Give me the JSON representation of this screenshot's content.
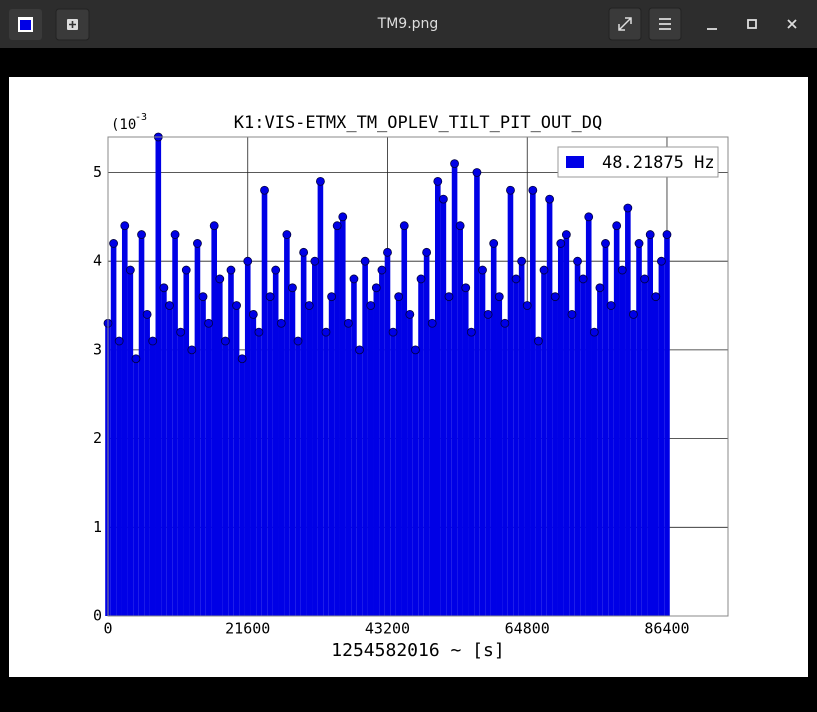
{
  "window": {
    "title": "TM9.png"
  },
  "chart_data": {
    "type": "stem",
    "title": "K1:VIS-ETMX_TM_OPLEV_TILT_PIT_OUT_DQ",
    "x_label": "1254582016 ~ [s]",
    "y_multiplier": "(10",
    "y_multiplier_exponent": "-3",
    "legend_position": "upper right",
    "grid": true,
    "xlim": [
      0,
      95832
    ],
    "ylim": [
      0,
      5.4
    ],
    "xticks": [
      0,
      21600,
      43200,
      64800,
      86400
    ],
    "yticks": [
      0,
      1,
      2,
      3,
      4,
      5
    ],
    "x": [
      0,
      864,
      1728,
      2592,
      3456,
      4320,
      5184,
      6048,
      6912,
      7776,
      8640,
      9504,
      10368,
      11232,
      12096,
      12960,
      13824,
      14688,
      15552,
      16416,
      17280,
      18144,
      19008,
      19872,
      20736,
      21600,
      22464,
      23328,
      24192,
      25056,
      25920,
      26784,
      27648,
      28512,
      29376,
      30240,
      31104,
      31968,
      32832,
      33696,
      34560,
      35424,
      36288,
      37152,
      38016,
      38880,
      39744,
      40608,
      41472,
      42336,
      43200,
      44064,
      44928,
      45792,
      46656,
      47520,
      48384,
      49248,
      50112,
      50976,
      51840,
      52704,
      53568,
      54432,
      55296,
      56160,
      57024,
      57888,
      58752,
      59616,
      60480,
      61344,
      62208,
      63072,
      63936,
      64800,
      65664,
      66528,
      67392,
      68256,
      69120,
      69984,
      70848,
      71712,
      72576,
      73440,
      74304,
      75168,
      76032,
      76896,
      77760,
      78624,
      79488,
      80352,
      81216,
      82080,
      82944,
      83808,
      84672,
      85536,
      86400
    ],
    "series": [
      {
        "name": "48.21875 Hz",
        "color": "#0000e6",
        "values": [
          3.3,
          4.2,
          3.1,
          4.4,
          3.9,
          2.9,
          4.3,
          3.4,
          3.1,
          5.4,
          3.7,
          3.5,
          4.3,
          3.2,
          3.9,
          3.0,
          4.2,
          3.6,
          3.3,
          4.4,
          3.8,
          3.1,
          3.9,
          3.5,
          2.9,
          4.0,
          3.4,
          3.2,
          4.8,
          3.6,
          3.9,
          3.3,
          4.3,
          3.7,
          3.1,
          4.1,
          3.5,
          4.0,
          4.9,
          3.2,
          3.6,
          4.4,
          4.5,
          3.3,
          3.8,
          3.0,
          4.0,
          3.5,
          3.7,
          3.9,
          4.1,
          3.2,
          3.6,
          4.4,
          3.4,
          3.0,
          3.8,
          4.1,
          3.3,
          4.9,
          4.7,
          3.6,
          5.1,
          4.4,
          3.7,
          3.2,
          5.0,
          3.9,
          3.4,
          4.2,
          3.6,
          3.3,
          4.8,
          3.8,
          4.0,
          3.5,
          4.8,
          3.1,
          3.9,
          4.7,
          3.6,
          4.2,
          4.3,
          3.4,
          4.0,
          3.8,
          4.5,
          3.2,
          3.7,
          4.2,
          3.5,
          4.4,
          3.9,
          4.6,
          3.4,
          4.2,
          3.8,
          4.3,
          3.6,
          4.0,
          4.3
        ]
      }
    ]
  }
}
